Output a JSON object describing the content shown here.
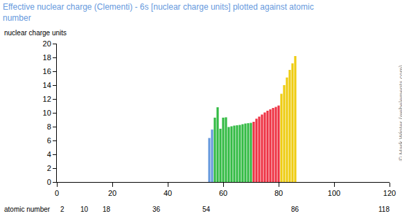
{
  "chart_data": {
    "type": "bar",
    "title": "Effective nuclear charge (Clementi) - 6s [nuclear charge units] plotted against atomic number",
    "ylabel": "nuclear charge units",
    "xlabel": "atomic number",
    "x": [
      55,
      56,
      57,
      58,
      59,
      60,
      61,
      62,
      63,
      64,
      65,
      66,
      67,
      68,
      69,
      70,
      71,
      72,
      73,
      74,
      75,
      76,
      77,
      78,
      79,
      80,
      81,
      82,
      83,
      84,
      85,
      86
    ],
    "values": [
      6.36,
      7.58,
      9.3,
      10.8,
      7.7,
      9.3,
      9.35,
      7.95,
      8.05,
      8.15,
      8.2,
      8.25,
      8.35,
      8.45,
      8.5,
      8.55,
      8.7,
      9.15,
      9.45,
      9.75,
      10.05,
      10.3,
      10.5,
      10.7,
      10.85,
      11.05,
      12.75,
      14.0,
      15.1,
      16.2,
      17.15,
      18.2
    ],
    "colors": [
      "#6699dd",
      "#6699dd",
      "#33bb44",
      "#33bb44",
      "#33bb44",
      "#33bb44",
      "#33bb44",
      "#33bb44",
      "#33bb44",
      "#33bb44",
      "#33bb44",
      "#33bb44",
      "#33bb44",
      "#33bb44",
      "#33bb44",
      "#33bb44",
      "#ee3344",
      "#ee3344",
      "#ee3344",
      "#ee3344",
      "#ee3344",
      "#ee3344",
      "#ee3344",
      "#ee3344",
      "#ee3344",
      "#ee3344",
      "#eecc11",
      "#eecc11",
      "#eecc11",
      "#eecc11",
      "#eecc11",
      "#eecc11"
    ],
    "xlim": [
      0,
      120
    ],
    "xticks": [
      0,
      20,
      40,
      60,
      80,
      100,
      120
    ],
    "ylim": [
      0,
      20
    ],
    "yticks": [
      0,
      2,
      4,
      6,
      8,
      10,
      12,
      14,
      16,
      18,
      20
    ],
    "grid": false,
    "annotations": [
      {
        "x": 2,
        "text": "2"
      },
      {
        "x": 10,
        "text": "10"
      },
      {
        "x": 18,
        "text": "18"
      },
      {
        "x": 36,
        "text": "36"
      },
      {
        "x": 54,
        "text": "54"
      },
      {
        "x": 86,
        "text": "86"
      },
      {
        "x": 118,
        "text": "118"
      }
    ],
    "credit": "© Mark Winter (webelements.com)"
  }
}
